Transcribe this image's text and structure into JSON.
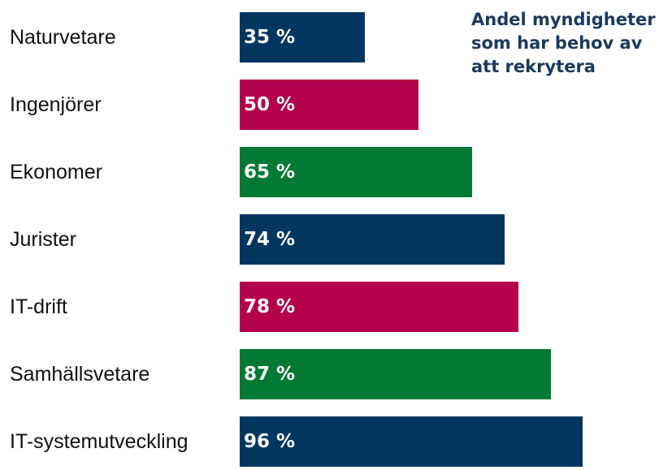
{
  "chart_data": {
    "type": "bar",
    "orientation": "horizontal",
    "title": "Andel myndigheter som har behov av att rekrytera",
    "categories": [
      "Naturvetare",
      "Ingenjörer",
      "Ekonomer",
      "Jurister",
      "IT-drift",
      "Samhällsvetare",
      "IT-systemutveckling"
    ],
    "values": [
      35,
      50,
      65,
      74,
      78,
      87,
      96
    ],
    "value_labels": [
      "35 %",
      "50 %",
      "65 %",
      "74 %",
      "78 %",
      "87 %",
      "96 %"
    ],
    "colors": [
      "#003660",
      "#b5004c",
      "#007a33",
      "#003660",
      "#b5004c",
      "#007a33",
      "#003660"
    ]
  }
}
